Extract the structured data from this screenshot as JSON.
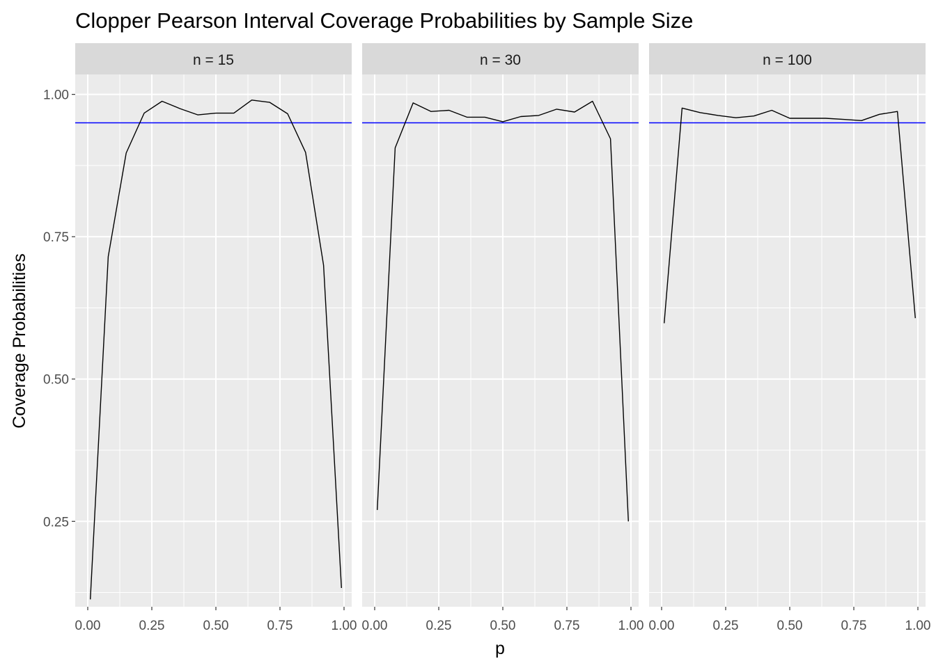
{
  "chart_data": {
    "type": "line",
    "title": "Clopper Pearson Interval Coverage Probabilities by Sample Size",
    "xlabel": "p",
    "ylabel": "Coverage Probabilities",
    "xlim": [
      0,
      1
    ],
    "ylim": [
      0.1,
      1.035
    ],
    "x_ticks": [
      "0.00",
      "0.25",
      "0.50",
      "0.75",
      "1.00"
    ],
    "y_ticks": [
      "0.25",
      "0.50",
      "0.75",
      "1.00"
    ],
    "grid": true,
    "reference_line": {
      "y": 0.95,
      "color": "#0000ff"
    },
    "colors": {
      "panel_bg": "#ebebeb",
      "strip_bg": "#d9d9d9",
      "grid": "#ffffff",
      "line": "#000000",
      "reference": "#0000ff"
    },
    "facets": [
      {
        "label": "n = 15",
        "x": [
          0.01,
          0.08,
          0.15,
          0.22,
          0.29,
          0.36,
          0.43,
          0.5,
          0.57,
          0.64,
          0.71,
          0.78,
          0.85,
          0.92,
          0.99
        ],
        "y": [
          0.113,
          0.715,
          0.897,
          0.967,
          0.988,
          0.975,
          0.964,
          0.967,
          0.967,
          0.99,
          0.986,
          0.966,
          0.898,
          0.7,
          0.133
        ]
      },
      {
        "label": "n = 30",
        "x": [
          0.01,
          0.08,
          0.15,
          0.22,
          0.29,
          0.36,
          0.43,
          0.5,
          0.57,
          0.64,
          0.71,
          0.78,
          0.85,
          0.92,
          0.99
        ],
        "y": [
          0.27,
          0.906,
          0.985,
          0.97,
          0.972,
          0.96,
          0.96,
          0.952,
          0.961,
          0.963,
          0.974,
          0.969,
          0.988,
          0.922,
          0.25
        ]
      },
      {
        "label": "n = 100",
        "x": [
          0.01,
          0.08,
          0.15,
          0.22,
          0.29,
          0.36,
          0.43,
          0.5,
          0.57,
          0.64,
          0.71,
          0.78,
          0.85,
          0.92,
          0.99
        ],
        "y": [
          0.598,
          0.976,
          0.968,
          0.963,
          0.959,
          0.962,
          0.972,
          0.958,
          0.958,
          0.958,
          0.956,
          0.954,
          0.965,
          0.97,
          0.607
        ]
      }
    ]
  }
}
